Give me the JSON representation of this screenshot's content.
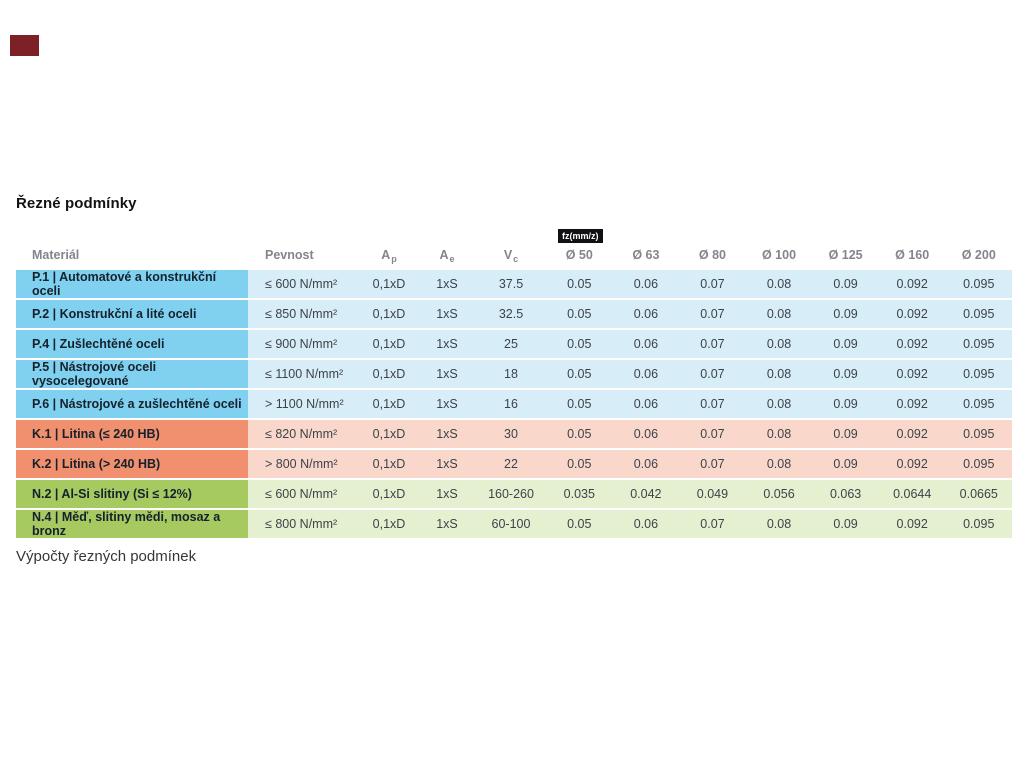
{
  "page": {
    "title": "Řezné podmínky",
    "footer": "Výpočty řezných podmínek",
    "marker_color": "#7d2127"
  },
  "table": {
    "fz_badge": "fz(mm/z)",
    "headers": {
      "material": "Materiál",
      "pevnost": "Pevnost",
      "ap_base": "A",
      "ap_sub": "p",
      "ae_base": "A",
      "ae_sub": "e",
      "vc_base": "V",
      "vc_sub": "c",
      "diameters": [
        "Ø 50",
        "Ø 63",
        "Ø 80",
        "Ø 100",
        "Ø 125",
        "Ø 160",
        "Ø 200"
      ]
    },
    "colors": {
      "steel_name_bg": "#7fd1ef",
      "steel_data_bg": "#d7edf8",
      "cast_name_bg": "#f0906e",
      "cast_data_bg": "#f9d8cb",
      "alu_name_bg": "#a6c960",
      "alu_data_bg": "#e5f0d0"
    },
    "rows": [
      {
        "group": "steel",
        "material": "P.1 | Automatové a konstrukční oceli",
        "pevnost": "≤ 600 N/mm²",
        "ap": "0,1xD",
        "ae": "1xS",
        "vc": "37.5",
        "fz": [
          "0.05",
          "0.06",
          "0.07",
          "0.08",
          "0.09",
          "0.092",
          "0.095"
        ]
      },
      {
        "group": "steel",
        "material": "P.2 | Konstrukční a lité oceli",
        "pevnost": "≤ 850 N/mm²",
        "ap": "0,1xD",
        "ae": "1xS",
        "vc": "32.5",
        "fz": [
          "0.05",
          "0.06",
          "0.07",
          "0.08",
          "0.09",
          "0.092",
          "0.095"
        ]
      },
      {
        "group": "steel",
        "material": "P.4 | Zušlechtěné oceli",
        "pevnost": "≤ 900 N/mm²",
        "ap": "0,1xD",
        "ae": "1xS",
        "vc": "25",
        "fz": [
          "0.05",
          "0.06",
          "0.07",
          "0.08",
          "0.09",
          "0.092",
          "0.095"
        ]
      },
      {
        "group": "steel",
        "material": "P.5 | Nástrojové oceli vysocelegované",
        "pevnost": "≤ 1100 N/mm²",
        "ap": "0,1xD",
        "ae": "1xS",
        "vc": "18",
        "fz": [
          "0.05",
          "0.06",
          "0.07",
          "0.08",
          "0.09",
          "0.092",
          "0.095"
        ]
      },
      {
        "group": "steel",
        "material": "P.6 | Nástrojové a zušlechtěné oceli",
        "pevnost": "> 1100 N/mm²",
        "ap": "0,1xD",
        "ae": "1xS",
        "vc": "16",
        "fz": [
          "0.05",
          "0.06",
          "0.07",
          "0.08",
          "0.09",
          "0.092",
          "0.095"
        ]
      },
      {
        "group": "cast",
        "material": "K.1 | Litina (≤ 240 HB)",
        "pevnost": "≤ 820 N/mm²",
        "ap": "0,1xD",
        "ae": "1xS",
        "vc": "30",
        "fz": [
          "0.05",
          "0.06",
          "0.07",
          "0.08",
          "0.09",
          "0.092",
          "0.095"
        ]
      },
      {
        "group": "cast",
        "material": "K.2 | Litina (> 240 HB)",
        "pevnost": "> 800 N/mm²",
        "ap": "0,1xD",
        "ae": "1xS",
        "vc": "22",
        "fz": [
          "0.05",
          "0.06",
          "0.07",
          "0.08",
          "0.09",
          "0.092",
          "0.095"
        ]
      },
      {
        "group": "alu",
        "material": "N.2 | Al-Si slitiny (Si ≤ 12%)",
        "pevnost": "≤ 600 N/mm²",
        "ap": "0,1xD",
        "ae": "1xS",
        "vc": "160-260",
        "fz": [
          "0.035",
          "0.042",
          "0.049",
          "0.056",
          "0.063",
          "0.0644",
          "0.0665"
        ]
      },
      {
        "group": "alu",
        "material": "N.4 | Měď, slitiny mědi, mosaz a bronz",
        "pevnost": "≤ 800 N/mm²",
        "ap": "0,1xD",
        "ae": "1xS",
        "vc": "60-100",
        "fz": [
          "0.05",
          "0.06",
          "0.07",
          "0.08",
          "0.09",
          "0.092",
          "0.095"
        ]
      }
    ]
  }
}
